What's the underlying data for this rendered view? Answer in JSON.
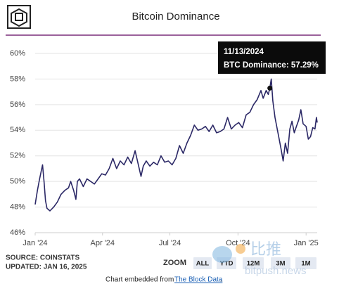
{
  "chart_data": {
    "type": "line",
    "title": "Bitcoin Dominance",
    "x": [
      0,
      3,
      6,
      10,
      12,
      14,
      16,
      20,
      25,
      30,
      35,
      40,
      45,
      48,
      52,
      55,
      57,
      60,
      65,
      70,
      75,
      80,
      85,
      90,
      95,
      100,
      105,
      110,
      115,
      120,
      125,
      130,
      135,
      143,
      146,
      150,
      155,
      160,
      165,
      170,
      175,
      180,
      185,
      190,
      195,
      200,
      205,
      210,
      215,
      220,
      225,
      230,
      235,
      240,
      245,
      250,
      255,
      260,
      265,
      270,
      275,
      280,
      285,
      290,
      295,
      300,
      305,
      308,
      312,
      315,
      317,
      319,
      321,
      324,
      328,
      332,
      335,
      338,
      341,
      344,
      347,
      350,
      353,
      356,
      359,
      362,
      366,
      369,
      372,
      375,
      378,
      380,
      381
    ],
    "values": [
      48.2,
      49.3,
      50.2,
      51.3,
      50.0,
      48.5,
      47.9,
      47.7,
      48.0,
      48.4,
      49.0,
      49.3,
      49.5,
      50.0,
      49.3,
      48.6,
      50.0,
      50.2,
      49.6,
      50.2,
      50.0,
      49.8,
      50.2,
      50.6,
      50.5,
      51.0,
      51.8,
      51.0,
      51.6,
      51.3,
      51.9,
      51.4,
      52.4,
      50.4,
      51.2,
      51.6,
      51.2,
      51.5,
      51.3,
      52.0,
      51.5,
      51.6,
      51.3,
      51.8,
      52.8,
      52.2,
      53.0,
      53.6,
      54.4,
      54.0,
      54.1,
      54.3,
      53.9,
      54.4,
      53.8,
      53.9,
      54.1,
      55.0,
      54.1,
      54.4,
      54.6,
      54.2,
      55.2,
      55.4,
      56.0,
      56.4,
      57.1,
      56.5,
      57.1,
      56.8,
      57.29,
      58.0,
      56.3,
      55.0,
      53.8,
      52.6,
      51.6,
      53.0,
      52.2,
      54.1,
      54.7,
      53.8,
      54.3,
      54.8,
      55.6,
      54.5,
      54.3,
      53.3,
      53.5,
      54.2,
      54.1,
      55.0,
      54.6
    ],
    "color": "#2b2866",
    "xlim": [
      0,
      381
    ],
    "xticks": [
      {
        "value": 0,
        "label": "Jan '24"
      },
      {
        "value": 91,
        "label": "Apr '24"
      },
      {
        "value": 182,
        "label": "Jul '24"
      },
      {
        "value": 274,
        "label": "Oct '24"
      },
      {
        "value": 366,
        "label": "Jan '25"
      }
    ],
    "ylim": [
      46,
      60
    ],
    "yticks": [
      {
        "value": 46,
        "label": "46%"
      },
      {
        "value": 48,
        "label": "48%"
      },
      {
        "value": 50,
        "label": "50%"
      },
      {
        "value": 52,
        "label": "52%"
      },
      {
        "value": 54,
        "label": "54%"
      },
      {
        "value": 56,
        "label": "56%"
      },
      {
        "value": 58,
        "label": "58%"
      },
      {
        "value": 60,
        "label": "60%"
      }
    ],
    "grid": true,
    "annotation": {
      "date": "11/13/2024",
      "text": "BTC Dominance: 57.29%",
      "x": 317,
      "y": 57.29
    }
  },
  "footer": {
    "source": "SOURCE: COINSTATS",
    "updated": "UPDATED: JAN 16, 2025",
    "zoom": "ZOOM",
    "buttons": [
      "ALL",
      "YTD",
      "12M",
      "3M",
      "1M"
    ],
    "embed": "Chart embedded from",
    "link": "The Block Data",
    "period": "."
  },
  "watermark": {
    "name": "比推",
    "site": "bitpush.news"
  }
}
